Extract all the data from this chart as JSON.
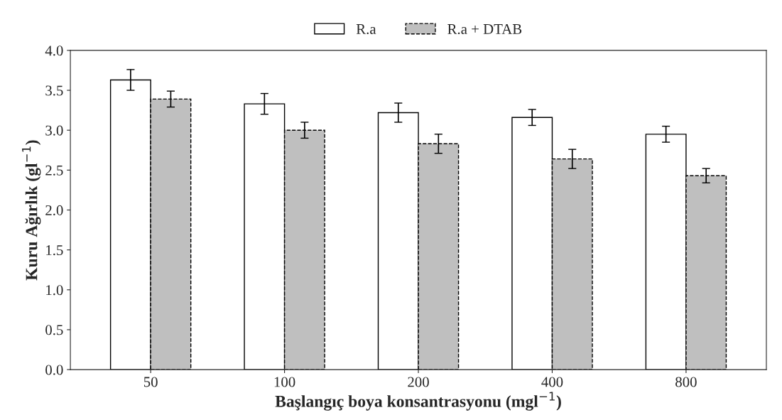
{
  "chart_data": {
    "type": "bar",
    "xlabel": "Başlangıç boya konsantrasyonu (mgl$^{−1}$)",
    "ylabel": "Kuru Ağırlık (gl$^{−1}$)",
    "categories": [
      "50",
      "100",
      "200",
      "400",
      "800"
    ],
    "series": [
      {
        "name": "R.a",
        "color": "#ffffff",
        "values": [
          3.63,
          3.33,
          3.22,
          3.16,
          2.95
        ],
        "errors": [
          0.13,
          0.13,
          0.12,
          0.1,
          0.1
        ]
      },
      {
        "name": "R.a + DTAB",
        "color": "#bfbfbf",
        "values": [
          3.39,
          3.0,
          2.83,
          2.64,
          2.43
        ],
        "errors": [
          0.1,
          0.1,
          0.12,
          0.12,
          0.09
        ],
        "line_style": "dashed"
      }
    ],
    "ylim": [
      0,
      4.0
    ],
    "yticks": [
      {
        "value": 0,
        "label": "0.0"
      },
      {
        "value": 0.5,
        "label": "0.5"
      },
      {
        "value": 1,
        "label": "1.0"
      },
      {
        "value": 1.5,
        "label": "1.5"
      },
      {
        "value": 2,
        "label": "2.0"
      },
      {
        "value": 2.5,
        "label": "2.5"
      },
      {
        "value": 3,
        "label": "3.0"
      },
      {
        "value": 3.5,
        "label": "3.5"
      },
      {
        "value": 4,
        "label": "4.0"
      }
    ],
    "grid": false,
    "legend": "top"
  }
}
